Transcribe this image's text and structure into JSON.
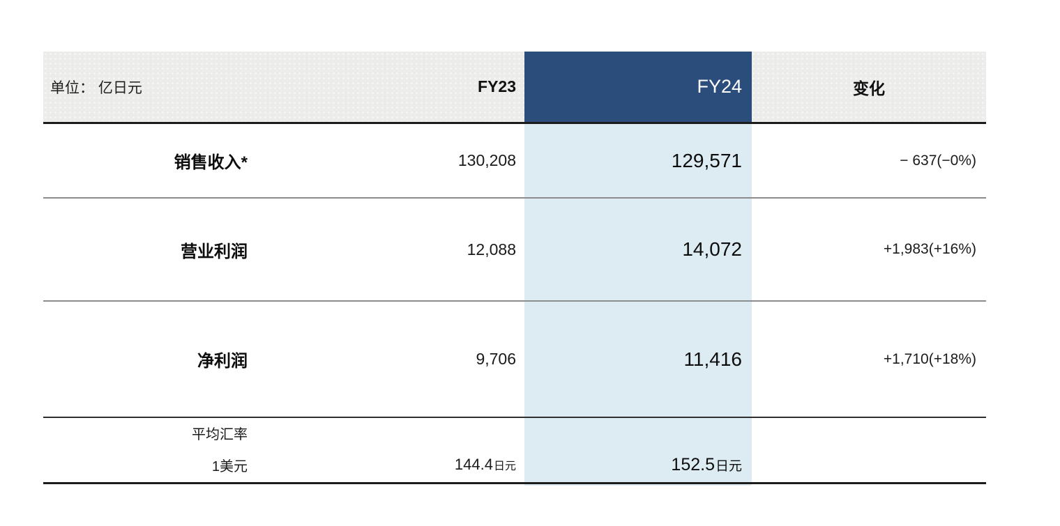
{
  "table": {
    "unit_label": "单位： 亿日元",
    "header": {
      "fy23": "FY23",
      "fy24": "FY24",
      "change": "变化"
    },
    "rows": [
      {
        "label": "销售收入*",
        "fy23": "130,208",
        "fy24": "129,571",
        "change": "− 637(−0%)"
      },
      {
        "label": "营业利润",
        "fy23": "12,088",
        "fy24": "14,072",
        "change": "+1,983(+16%)"
      },
      {
        "label": "净利润",
        "fy23": "9,706",
        "fy24": "11,416",
        "change": "+1,710(+18%)"
      }
    ],
    "exchange_rate": {
      "label_line1": "平均汇率",
      "label_line2": "1美元",
      "fy23_value": "144.4",
      "fy23_suffix": "日元",
      "fy24_value": "152.5",
      "fy24_suffix": "日元"
    },
    "colors": {
      "header_bg": "#ECECEB",
      "fy24_header_bg": "#2B4D7C",
      "fy24_column_bg": "#DCECF2",
      "heavy_rule": "#1C1C1C",
      "light_rule": "#8C8C8C"
    }
  }
}
